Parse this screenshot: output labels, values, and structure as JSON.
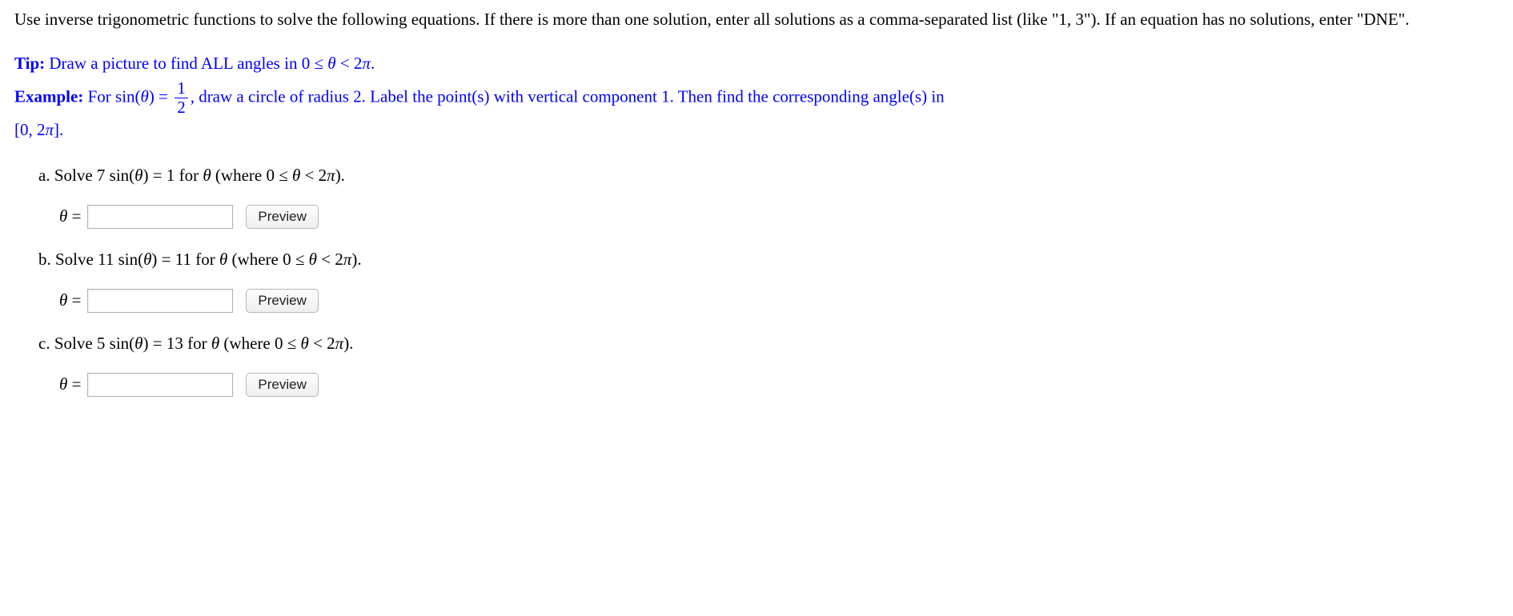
{
  "intro": "Use inverse trigonometric functions to solve the following equations. If there is more than one solution, enter all solutions as a comma-separated list (like \"1, 3\"). If an equation has no solutions, enter \"DNE\".",
  "tip": {
    "label": "Tip:",
    "text_before": " Draw a picture to find ALL angles in ",
    "range": "0 ≤ θ < 2π",
    "text_after": "."
  },
  "example": {
    "label": "Example:",
    "before_eq": " For ",
    "fn": "sin(θ) = ",
    "frac_num": "1",
    "frac_den": "2",
    "after_eq": ", draw a circle of radius 2. Label the point(s) with vertical component 1. Then find the corresponding angle(s) in ",
    "interval": "[0, 2π]",
    "period": "."
  },
  "problems": {
    "a": {
      "label": "a. Solve ",
      "eq_before": "7 sin(θ) = 1",
      "for_text": " for θ (where ",
      "range": "0 ≤ θ < 2π",
      "close": ")."
    },
    "b": {
      "label": "b. Solve ",
      "eq_before": "11 sin(θ) = 11",
      "for_text": " for θ (where ",
      "range": "0 ≤ θ < 2π",
      "close": ")."
    },
    "c": {
      "label": "c. Solve ",
      "eq_before": "5 sin(θ) = 13",
      "for_text": " for θ (where ",
      "range": "0 ≤ θ < 2π",
      "close": ")."
    }
  },
  "answer": {
    "theta_label": "θ = ",
    "preview": "Preview"
  },
  "colors": {
    "tip_color": "#0000ff",
    "text_color": "#000000",
    "button_bg_top": "#fdfdfd",
    "button_bg_bottom": "#efefef",
    "input_border": "#b0b0b0"
  }
}
